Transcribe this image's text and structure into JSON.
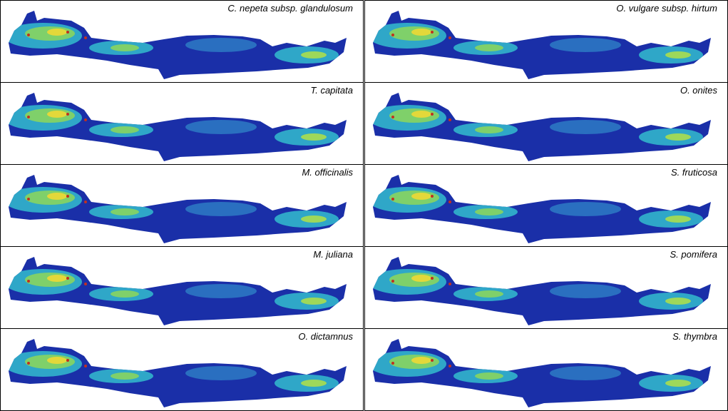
{
  "panels": [
    {
      "label": "C. nepeta subsp. glandulosum"
    },
    {
      "label": "O. vulgare subsp. hirtum"
    },
    {
      "label": "T. capitata"
    },
    {
      "label": "O. onites"
    },
    {
      "label": "M. officinalis"
    },
    {
      "label": "S. fruticosa"
    },
    {
      "label": "M. juliana"
    },
    {
      "label": "S. pomifera"
    },
    {
      "label": "O. dictamnus"
    },
    {
      "label": "S. thymbra"
    }
  ]
}
